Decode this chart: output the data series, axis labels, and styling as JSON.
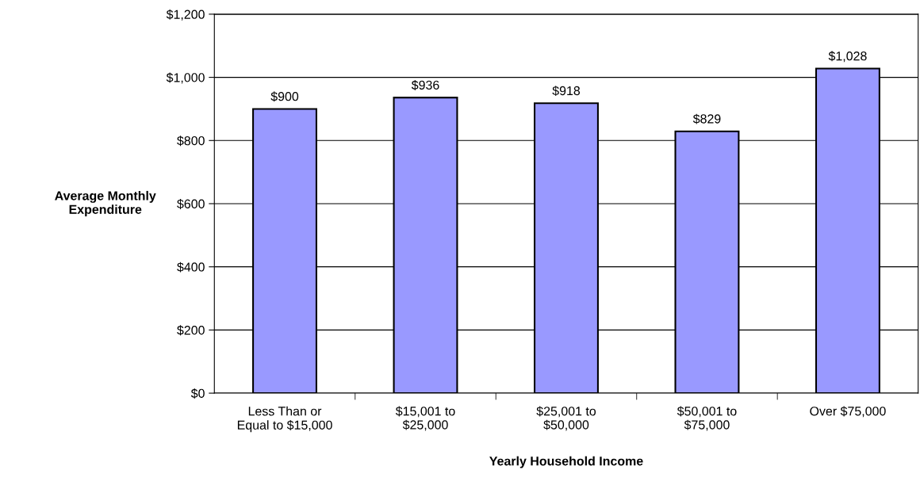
{
  "chart_data": {
    "type": "bar",
    "xlabel": "Yearly Household Income",
    "ylabel": "Average Monthly\nExpenditure",
    "categories": [
      "Less Than or\nEqual to $15,000",
      "$15,001 to\n$25,000",
      "$25,001 to\n$50,000",
      "$50,001 to\n$75,000",
      "Over $75,000"
    ],
    "values": [
      900,
      936,
      918,
      829,
      1028
    ],
    "value_labels": [
      "$900",
      "$936",
      "$918",
      "$829",
      "$1,028"
    ],
    "color": "#9999ff",
    "ylim": [
      0,
      1200
    ],
    "yticks": [
      {
        "value": 0,
        "label": "$0"
      },
      {
        "value": 200,
        "label": "$200"
      },
      {
        "value": 400,
        "label": "$400"
      },
      {
        "value": 600,
        "label": "$600"
      },
      {
        "value": 800,
        "label": "$800"
      },
      {
        "value": 1000,
        "label": "$1,000"
      },
      {
        "value": 1200,
        "label": "$1,200"
      }
    ],
    "grid": "y",
    "legend": false
  }
}
